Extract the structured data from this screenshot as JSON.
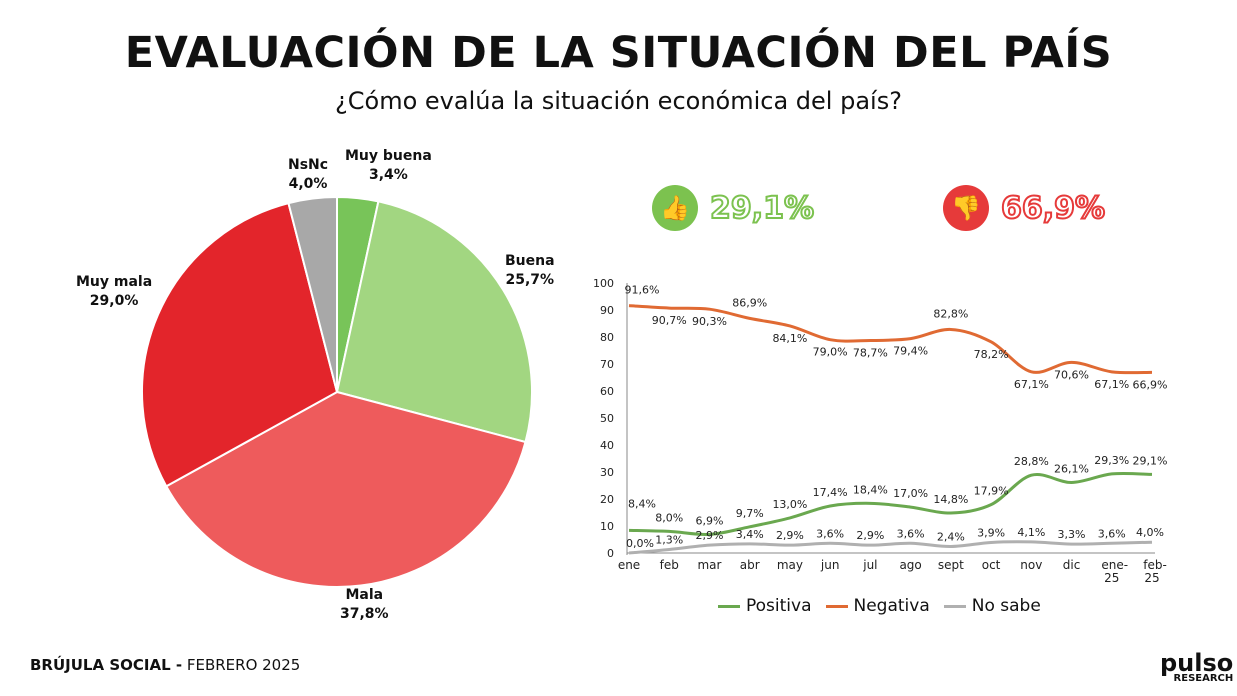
{
  "title": "EVALUACIÓN DE LA SITUACIÓN DEL PAÍS",
  "subtitle": "¿Cómo evalúa la situación económica del país?",
  "kpis": {
    "positive": {
      "value": "29,1%",
      "icon": "thumbs-up-icon",
      "color": "#7cc24f"
    },
    "negative": {
      "value": "66,9%",
      "icon": "thumbs-down-icon",
      "color": "#e63a3a"
    }
  },
  "chart_data": [
    {
      "type": "pie",
      "slices": [
        {
          "label": "Muy buena",
          "value": 3.4,
          "text": "3,4%",
          "color": "#78c459"
        },
        {
          "label": "Buena",
          "value": 25.7,
          "text": "25,7%",
          "color": "#a2d681"
        },
        {
          "label": "Mala",
          "value": 37.8,
          "text": "37,8%",
          "color": "#ee5b5c"
        },
        {
          "label": "Muy mala",
          "value": 29.0,
          "text": "29,0%",
          "color": "#e3252b"
        },
        {
          "label": "NsNc",
          "value": 4.0,
          "text": "4,0%",
          "color": "#a8a8a8"
        }
      ]
    },
    {
      "type": "line",
      "categories": [
        "ene",
        "feb",
        "mar",
        "abr",
        "may",
        "jun",
        "jul",
        "ago",
        "sept",
        "oct",
        "nov",
        "dic",
        "ene-25",
        "feb-25"
      ],
      "ylim": [
        0,
        100
      ],
      "yticks": [
        0,
        10,
        20,
        30,
        40,
        50,
        60,
        70,
        80,
        90,
        100
      ],
      "legend": "bottom",
      "series": [
        {
          "name": "Positiva",
          "color": "#6aa84f",
          "values": [
            8.4,
            8.0,
            6.9,
            9.7,
            13.0,
            17.4,
            18.4,
            17.0,
            14.8,
            17.9,
            28.8,
            26.1,
            29.3,
            29.1
          ],
          "labels": [
            "8,4%",
            "8,0%",
            "6,9%",
            "9,7%",
            "13,0%",
            "17,4%",
            "18,4%",
            "17,0%",
            "14,8%",
            "17,9%",
            "28,8%",
            "26,1%",
            "29,3%",
            "29,1%"
          ]
        },
        {
          "name": "Negativa",
          "color": "#e06a33",
          "values": [
            91.6,
            90.7,
            90.3,
            86.9,
            84.1,
            79.0,
            78.7,
            79.4,
            82.8,
            78.2,
            67.1,
            70.6,
            67.1,
            66.9
          ],
          "labels": [
            "91,6%",
            "90,7%",
            "90,3%",
            "86,9%",
            "84,1%",
            "79,0%",
            "78,7%",
            "79,4%",
            "82,8%",
            "78,2%",
            "67,1%",
            "70,6%",
            "67,1%",
            "66,9%"
          ]
        },
        {
          "name": "No sabe",
          "color": "#b0b0b0",
          "values": [
            0.0,
            1.3,
            2.9,
            3.4,
            2.9,
            3.6,
            2.9,
            3.6,
            2.4,
            3.9,
            4.1,
            3.3,
            3.6,
            4.0
          ],
          "labels": [
            "0,0%",
            "1,3%",
            "2,9%",
            "3,4%",
            "2,9%",
            "3,6%",
            "2,9%",
            "3,6%",
            "2,4%",
            "3,9%",
            "4,1%",
            "3,3%",
            "3,6%",
            "4,0%"
          ]
        }
      ]
    }
  ],
  "footer": {
    "bold": "BRÚJULA SOCIAL -",
    "rest": " FEBRERO 2025"
  },
  "logo": {
    "name": "pulso",
    "sub": "RESEARCH"
  }
}
